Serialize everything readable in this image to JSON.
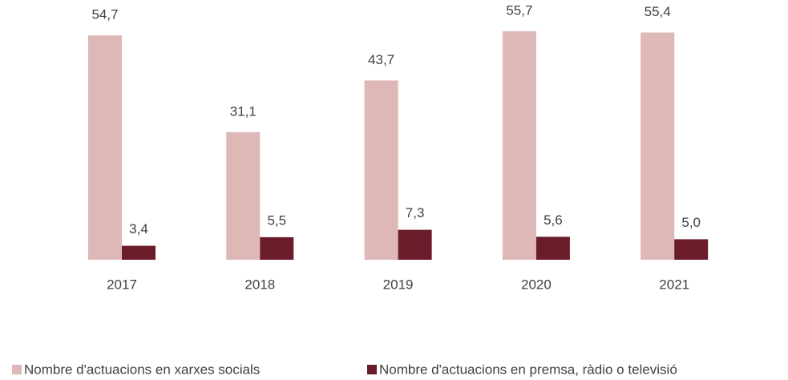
{
  "chart_data": {
    "type": "bar",
    "categories": [
      "2017",
      "2018",
      "2019",
      "2020",
      "2021"
    ],
    "series": [
      {
        "name": "Nombre d'actuacions en xarxes socials",
        "color": "#deb7b7",
        "values": [
          54.7,
          31.1,
          43.7,
          55.7,
          55.4
        ],
        "value_labels": [
          "54,7",
          "31,1",
          "43,7",
          "55,7",
          "55,4"
        ]
      },
      {
        "name": "Nombre d'actuacions en premsa, ràdio o televisió",
        "color": "#6b1c2a",
        "values": [
          3.4,
          5.5,
          7.3,
          5.6,
          5.0
        ],
        "value_labels": [
          "3,4",
          "5,5",
          "7,3",
          "5,6",
          "5,0"
        ]
      }
    ],
    "legend": "bottom"
  }
}
